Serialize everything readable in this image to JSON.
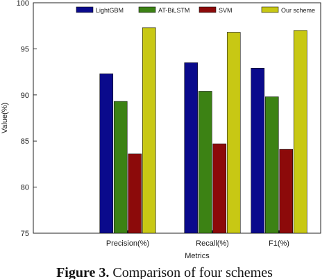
{
  "chart_data": {
    "type": "bar",
    "title": "",
    "xlabel": "Metrics",
    "ylabel": "Value(%)",
    "ylim": [
      75,
      100
    ],
    "yticks": [
      75,
      80,
      85,
      90,
      95,
      100
    ],
    "categories": [
      "Precision(%)",
      "Recall(%)",
      "F1(%)"
    ],
    "series": [
      {
        "name": "LightGBM",
        "color": "#0a0a8c",
        "values": [
          92.3,
          93.5,
          92.9
        ]
      },
      {
        "name": "AT-BiLSTM",
        "color": "#3c8214",
        "values": [
          89.3,
          90.4,
          89.8
        ]
      },
      {
        "name": "SVM",
        "color": "#8c0a0a",
        "values": [
          83.6,
          84.7,
          84.1
        ]
      },
      {
        "name": "Our scheme",
        "color": "#c8c814",
        "values": [
          97.3,
          96.8,
          97.0
        ]
      }
    ],
    "legend_position": "top"
  },
  "caption": {
    "label": "Figure 3.",
    "text": "Comparison of four schemes"
  }
}
